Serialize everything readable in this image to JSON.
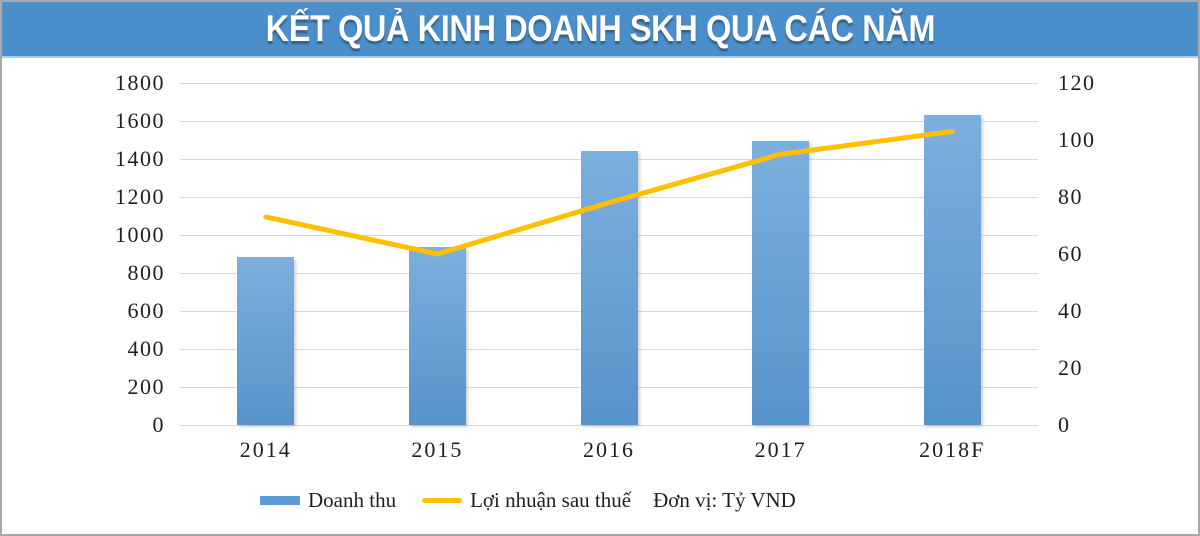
{
  "header": {
    "title": "KẾT QUẢ KINH DOANH SKH QUA CÁC NĂM",
    "background_color": "#4A8FCB"
  },
  "chart_data": {
    "type": "bar",
    "combo": "bar+line",
    "title": "KẾT QUẢ KINH DOANH SKH QUA CÁC NĂM",
    "categories": [
      "2014",
      "2015",
      "2016",
      "2017",
      "2018F"
    ],
    "series": [
      {
        "name": "Doanh thu",
        "type": "bar",
        "axis": "left",
        "color": "#5B9BD5",
        "values": [
          885,
          935,
          1440,
          1495,
          1630
        ]
      },
      {
        "name": "Lợi nhuận sau thuế",
        "type": "line",
        "axis": "right",
        "color": "#FFC000",
        "values": [
          73,
          60,
          78,
          95,
          103
        ]
      }
    ],
    "left_axis": {
      "min": 0,
      "max": 1800,
      "ticks": [
        0,
        200,
        400,
        600,
        800,
        1000,
        1200,
        1400,
        1600,
        1800
      ]
    },
    "right_axis": {
      "min": 0,
      "max": 120,
      "ticks": [
        0,
        20,
        40,
        60,
        80,
        100,
        120
      ]
    },
    "grid": true,
    "legend_position": "bottom",
    "unit_note": "Đơn vị: Tỷ VND"
  },
  "colors": {
    "gridline": "#D9D9D9",
    "axis_text": "#1F1F1F",
    "frame_border": "#A9A9A9",
    "bar_fill": "#5B9BD5",
    "line_stroke": "#FFC000"
  }
}
